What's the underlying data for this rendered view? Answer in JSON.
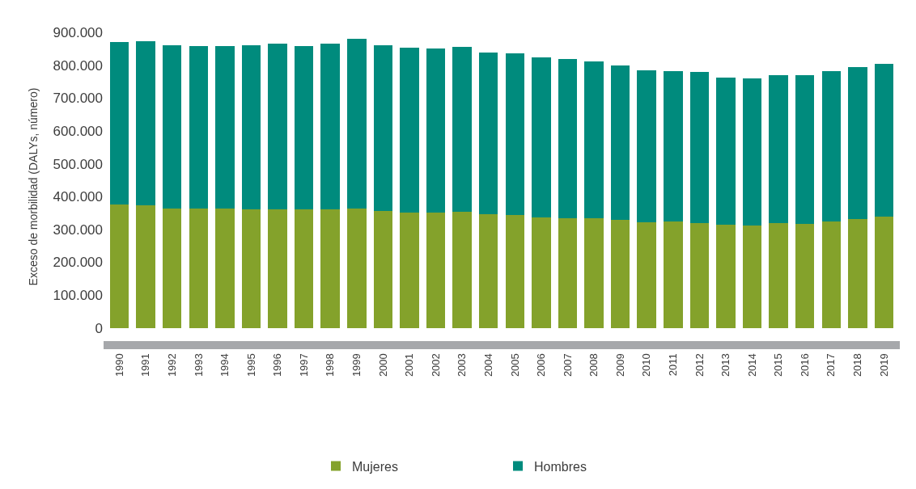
{
  "chart_data": {
    "type": "bar",
    "stacked": true,
    "ylabel": "Exceso de morbilidad (DALYs, número)",
    "categories": [
      "1990",
      "1991",
      "1992",
      "1993",
      "1994",
      "1995",
      "1996",
      "1997",
      "1998",
      "1999",
      "2000",
      "2001",
      "2002",
      "2003",
      "2004",
      "2005",
      "2006",
      "2007",
      "2008",
      "2009",
      "2010",
      "2011",
      "2012",
      "2013",
      "2014",
      "2015",
      "2016",
      "2017",
      "2018",
      "2019"
    ],
    "series": [
      {
        "name": "Mujeres",
        "color": "#84a22b",
        "values": [
          375000,
          373000,
          364000,
          364000,
          364000,
          361000,
          361000,
          360000,
          361000,
          364000,
          356000,
          351000,
          351000,
          353000,
          346000,
          343000,
          337000,
          335000,
          335000,
          328000,
          321000,
          324000,
          319000,
          314000,
          312000,
          319000,
          317000,
          324000,
          332000,
          339000
        ]
      },
      {
        "name": "Hombres",
        "color": "#008b7d",
        "values": [
          495000,
          500000,
          497000,
          494000,
          493000,
          500000,
          505000,
          497000,
          505000,
          516000,
          505000,
          502000,
          500000,
          502000,
          493000,
          494000,
          486000,
          485000,
          477000,
          470000,
          464000,
          459000,
          460000,
          449000,
          447000,
          451000,
          453000,
          459000,
          462000,
          464000
        ]
      }
    ],
    "ylim": [
      -40000,
      900000
    ],
    "yticks": [
      {
        "value": 0,
        "label": "0"
      },
      {
        "value": 100000,
        "label": "100.000"
      },
      {
        "value": 200000,
        "label": "200.000"
      },
      {
        "value": 300000,
        "label": "300.000"
      },
      {
        "value": 400000,
        "label": "400.000"
      },
      {
        "value": 500000,
        "label": "500.000"
      },
      {
        "value": 600000,
        "label": "600.000"
      },
      {
        "value": 700000,
        "label": "700.000"
      },
      {
        "value": 800000,
        "label": "800.000"
      },
      {
        "value": 900000,
        "label": "900.000"
      }
    ],
    "legend": "bottom"
  }
}
